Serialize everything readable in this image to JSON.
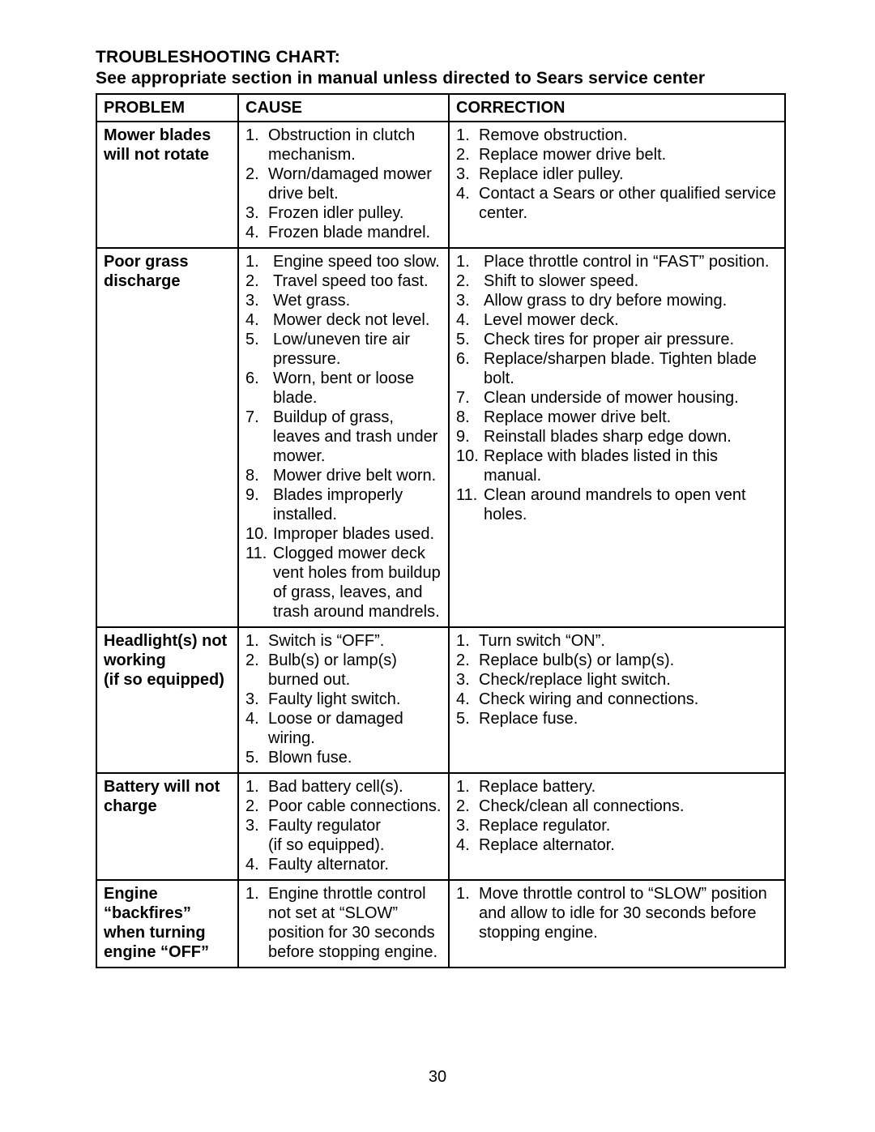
{
  "page_number": "30",
  "heading": {
    "title": "TROUBLESHOOTING CHART:",
    "subtitle": "See appropriate section in manual unless directed to Sears service center"
  },
  "columns": {
    "problem": "PROBLEM",
    "cause": "CAUSE",
    "correction": "CORRECTION"
  },
  "rows": [
    {
      "problem": "Mower blades will not rotate",
      "causes": [
        "Obstruction in clutch mechanism.",
        "Worn/damaged mower drive belt.",
        "Frozen idler pulley.",
        "Frozen blade mandrel."
      ],
      "corrections": [
        "Remove obstruction.",
        "Replace mower drive belt.",
        "Replace idler pulley.",
        "Contact a Sears or other qualified service center."
      ]
    },
    {
      "problem": "Poor grass discharge",
      "causes": [
        "Engine speed too slow.",
        "Travel speed too fast.",
        "Wet grass.",
        "Mower deck not level.",
        "Low/uneven tire air pressure.",
        "Worn, bent or loose blade.",
        "Buildup of grass, leaves and trash under mower.",
        "Mower drive belt worn.",
        "Blades improperly installed.",
        "Improper blades used.",
        "Clogged mower deck vent holes from buildup of grass, leaves, and trash around mandrels."
      ],
      "corrections": [
        "Place throttle control in “FAST” position.",
        "Shift to slower speed.",
        "Allow grass to dry before mowing.",
        "Level mower deck.",
        "Check tires for proper air pressure.",
        "Replace/sharpen blade. Tighten blade bolt.",
        "Clean underside of mower housing.",
        "Replace mower drive belt.",
        "Reinstall blades sharp edge down.",
        "Replace with blades listed in this manual.",
        "Clean around mandrels to open vent holes."
      ]
    },
    {
      "problem": "Headlight(s) not working\n(if so equipped)",
      "causes": [
        "Switch is “OFF”.",
        "Bulb(s) or lamp(s) burned out.",
        "Faulty light switch.",
        "Loose or damaged wiring.",
        "Blown fuse."
      ],
      "corrections": [
        "Turn switch “ON”.",
        "Replace bulb(s) or lamp(s).",
        "Check/replace light switch.",
        "Check wiring and connections.",
        "Replace fuse."
      ]
    },
    {
      "problem": "Battery will not charge",
      "causes": [
        "Bad battery cell(s).",
        "Poor cable connections.",
        "Faulty regulator\n(if so equipped).",
        "Faulty alternator."
      ],
      "corrections": [
        "Replace battery.",
        "Check/clean all connections.",
        "Replace regulator.",
        "Replace alternator."
      ]
    },
    {
      "problem": "Engine “backfires” when turning engine “OFF”",
      "causes": [
        "Engine throttle control not set at “SLOW” position for 30 seconds before stopping engine."
      ],
      "corrections": [
        "Move throttle control to “SLOW” position and allow to idle for 30 seconds before stopping engine."
      ]
    }
  ],
  "row1_cause_spacers": [
    "",
    "<br>",
    "",
    ""
  ],
  "row1_corr_spacers": [
    "<br>",
    "",
    "",
    ""
  ],
  "row2_cause_spacers": [
    "<br>",
    "",
    "<br>",
    "",
    "<br>",
    "<br>",
    "",
    "",
    "<br>",
    "<br>",
    ""
  ],
  "row2_corr_spacers": [
    "",
    "",
    "",
    "",
    "",
    "",
    "",
    "",
    "",
    "",
    "<br><br><br>"
  ],
  "row4_corr_spacers": [
    "",
    "",
    "<br>",
    ""
  ]
}
